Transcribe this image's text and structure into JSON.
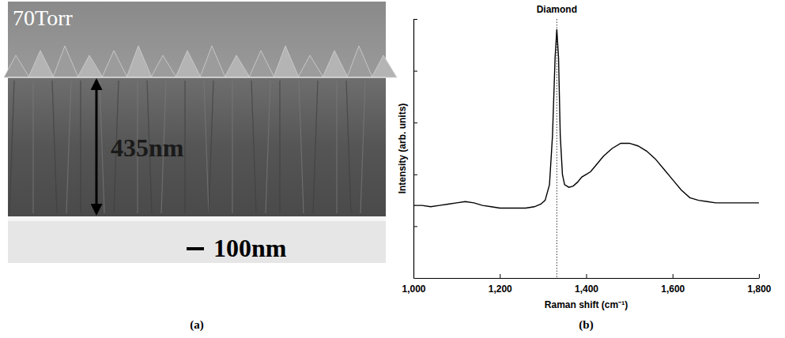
{
  "image_panel": {
    "label": "(a)",
    "condition": "70Torr",
    "thickness": "435nm",
    "scale_bar": "100nm"
  },
  "chart_data": {
    "type": "line",
    "panel_label": "(b)",
    "x_label": "Raman shift (cm⁻¹)",
    "y_label": "Intensity (arb. units)",
    "annotations": [
      {
        "text": "Diamond",
        "x": 1332,
        "line_style": "dotted"
      }
    ],
    "x": [
      1000,
      1020,
      1040,
      1060,
      1080,
      1100,
      1120,
      1140,
      1160,
      1180,
      1200,
      1220,
      1240,
      1260,
      1280,
      1295,
      1305,
      1315,
      1322,
      1328,
      1332,
      1336,
      1340,
      1345,
      1350,
      1360,
      1370,
      1380,
      1390,
      1400,
      1410,
      1420,
      1440,
      1460,
      1480,
      1500,
      1520,
      1540,
      1560,
      1580,
      1600,
      1620,
      1640,
      1660,
      1680,
      1700,
      1720,
      1740,
      1760,
      1780,
      1800
    ],
    "values": [
      0.28,
      0.28,
      0.275,
      0.28,
      0.285,
      0.29,
      0.295,
      0.29,
      0.28,
      0.275,
      0.27,
      0.27,
      0.27,
      0.27,
      0.275,
      0.285,
      0.3,
      0.36,
      0.55,
      0.85,
      0.96,
      0.85,
      0.55,
      0.4,
      0.36,
      0.35,
      0.355,
      0.37,
      0.39,
      0.4,
      0.41,
      0.43,
      0.47,
      0.5,
      0.52,
      0.52,
      0.51,
      0.49,
      0.46,
      0.42,
      0.38,
      0.34,
      0.31,
      0.3,
      0.295,
      0.29,
      0.29,
      0.29,
      0.29,
      0.29,
      0.29
    ],
    "color": "#000000",
    "xlim": [
      1000,
      1800
    ],
    "xticks": [
      {
        "value": 1000,
        "label": "1,000"
      },
      {
        "value": 1200,
        "label": "1,200"
      },
      {
        "value": 1400,
        "label": "1,400"
      },
      {
        "value": 1600,
        "label": "1,600"
      },
      {
        "value": 1800,
        "label": "1,800"
      }
    ],
    "ylim": [
      0,
      1
    ],
    "yticks": [
      0.2,
      0.4,
      0.6,
      0.8,
      1
    ],
    "tick_labels": "x",
    "grid": false
  }
}
